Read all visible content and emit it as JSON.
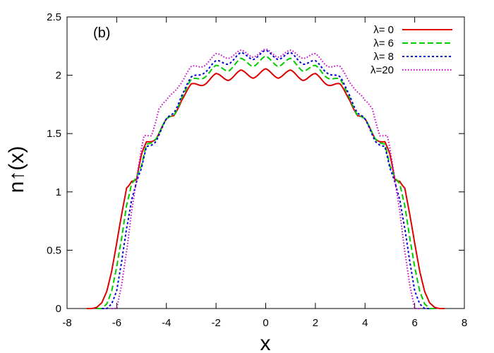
{
  "chart_data": {
    "type": "line",
    "panel_label": "(b)",
    "xlabel": "x",
    "ylabel": "n↑(x)",
    "xlim": [
      -8,
      8
    ],
    "ylim": [
      0,
      2.5
    ],
    "xticks": [
      -8,
      -6,
      -4,
      -2,
      0,
      2,
      4,
      6,
      8
    ],
    "xtick_labels": [
      "-8",
      "-6",
      "-4",
      "-2",
      "0",
      "2",
      "4",
      "6",
      "8"
    ],
    "yticks": [
      0,
      0.5,
      1,
      1.5,
      2,
      2.5
    ],
    "ytick_labels": [
      "0",
      "0.5",
      "1",
      "1.5",
      "2",
      "2.5"
    ],
    "grid": false,
    "legend_position": "top-right",
    "series": [
      {
        "name": "λ= 0",
        "color": "#dd0000",
        "dash": "solid",
        "points": [
          [
            0,
            2.03
          ],
          [
            0.5,
            2.0
          ],
          [
            1.0,
            2.02
          ],
          [
            1.5,
            1.98
          ],
          [
            2.0,
            1.99
          ],
          [
            2.5,
            1.94
          ],
          [
            3.0,
            1.9
          ],
          [
            3.4,
            1.8
          ],
          [
            3.7,
            1.66
          ],
          [
            4.0,
            1.6
          ],
          [
            4.4,
            1.48
          ],
          [
            4.8,
            1.42
          ],
          [
            5.0,
            1.3
          ],
          [
            5.2,
            1.1
          ],
          [
            5.4,
            1.11
          ],
          [
            5.6,
            1.05
          ],
          [
            5.8,
            0.8
          ],
          [
            6.0,
            0.55
          ],
          [
            6.2,
            0.32
          ],
          [
            6.4,
            0.15
          ],
          [
            6.6,
            0.05
          ],
          [
            6.8,
            0.01
          ],
          [
            7.0,
            0.0
          ]
        ]
      },
      {
        "name": "λ= 6",
        "color": "#00cc00",
        "dash": "dashed",
        "points": [
          [
            0,
            2.14
          ],
          [
            0.5,
            2.1
          ],
          [
            1.0,
            2.12
          ],
          [
            1.5,
            2.06
          ],
          [
            2.0,
            2.06
          ],
          [
            2.5,
            2.0
          ],
          [
            3.0,
            1.94
          ],
          [
            3.4,
            1.82
          ],
          [
            3.7,
            1.66
          ],
          [
            4.0,
            1.6
          ],
          [
            4.4,
            1.48
          ],
          [
            4.8,
            1.4
          ],
          [
            5.0,
            1.2
          ],
          [
            5.2,
            1.12
          ],
          [
            5.4,
            1.09
          ],
          [
            5.6,
            0.9
          ],
          [
            5.8,
            0.6
          ],
          [
            6.0,
            0.35
          ],
          [
            6.2,
            0.15
          ],
          [
            6.4,
            0.04
          ],
          [
            6.6,
            0.0
          ]
        ]
      },
      {
        "name": "λ= 8",
        "color": "#0000dd",
        "dash": "dotted",
        "points": [
          [
            0,
            2.19
          ],
          [
            0.5,
            2.16
          ],
          [
            1.0,
            2.17
          ],
          [
            1.5,
            2.12
          ],
          [
            2.0,
            2.1
          ],
          [
            2.5,
            2.04
          ],
          [
            3.0,
            1.96
          ],
          [
            3.4,
            1.84
          ],
          [
            3.7,
            1.68
          ],
          [
            4.0,
            1.6
          ],
          [
            4.4,
            1.46
          ],
          [
            4.8,
            1.38
          ],
          [
            5.0,
            1.18
          ],
          [
            5.2,
            1.08
          ],
          [
            5.4,
            0.95
          ],
          [
            5.6,
            0.7
          ],
          [
            5.8,
            0.4
          ],
          [
            6.0,
            0.15
          ],
          [
            6.2,
            0.04
          ],
          [
            6.4,
            0.0
          ]
        ]
      },
      {
        "name": "λ=20",
        "color": "#cc00cc",
        "dash": "dotted-fine",
        "points": [
          [
            0,
            2.2
          ],
          [
            0.5,
            2.18
          ],
          [
            1.0,
            2.19
          ],
          [
            1.5,
            2.17
          ],
          [
            2.0,
            2.16
          ],
          [
            2.5,
            2.1
          ],
          [
            3.0,
            2.05
          ],
          [
            3.5,
            1.93
          ],
          [
            4.0,
            1.76
          ],
          [
            4.3,
            1.72
          ],
          [
            4.6,
            1.5
          ],
          [
            4.9,
            1.46
          ],
          [
            5.0,
            1.35
          ],
          [
            5.2,
            1.1
          ],
          [
            5.4,
            0.85
          ],
          [
            5.6,
            0.5
          ],
          [
            5.8,
            0.2
          ],
          [
            6.0,
            0.0
          ]
        ]
      }
    ]
  }
}
